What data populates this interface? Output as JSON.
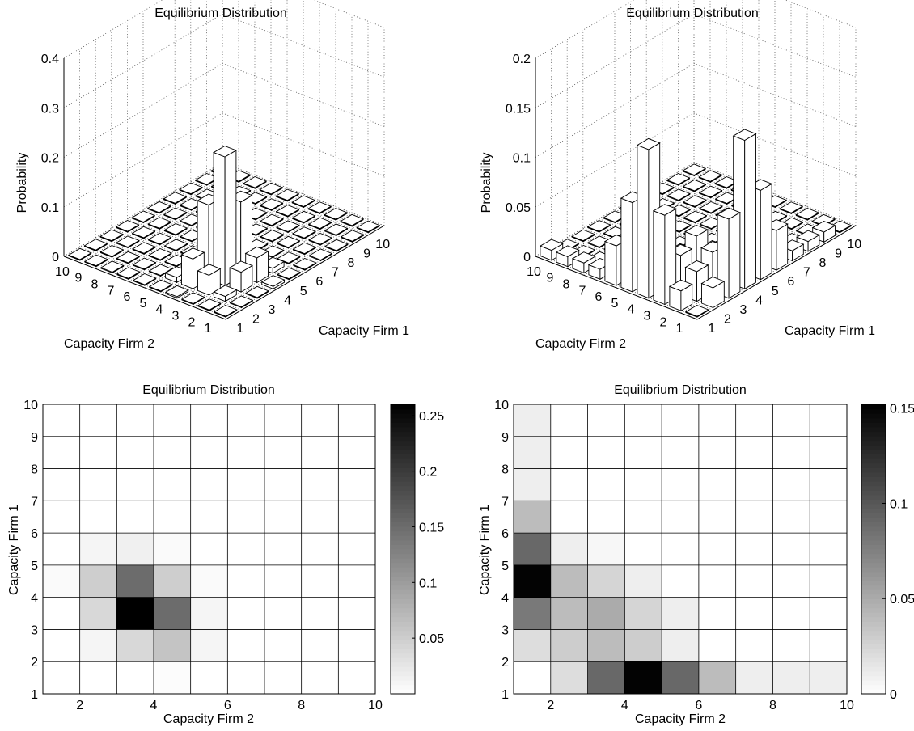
{
  "chart_data": [
    {
      "type": "bar3d",
      "title": "Equilibrium Distribution",
      "xlabel": "Capacity Firm 1",
      "ylabel": "Capacity Firm 2",
      "zlabel": "Probability",
      "x_ticks": [
        "1",
        "2",
        "3",
        "4",
        "5",
        "6",
        "7",
        "8",
        "9",
        "10"
      ],
      "y_ticks": [
        "1",
        "2",
        "3",
        "4",
        "5",
        "6",
        "7",
        "8",
        "9",
        "10"
      ],
      "z_ticks": [
        "0",
        "0.1",
        "0.2",
        "0.3",
        "0.4"
      ],
      "zlim": [
        0,
        0.4
      ],
      "grid": true,
      "matrix_note": "rows = Capacity Firm 1 (1..10), cols = Capacity Firm 2 (1..10)",
      "matrix": [
        [
          0,
          0,
          0,
          0.003,
          0,
          0,
          0,
          0,
          0,
          0
        ],
        [
          0,
          0.01,
          0.04,
          0.06,
          0.01,
          0,
          0,
          0,
          0,
          0
        ],
        [
          0,
          0.04,
          0.26,
          0.15,
          0.01,
          0,
          0,
          0,
          0,
          0
        ],
        [
          0.005,
          0.05,
          0.15,
          0.05,
          0.005,
          0,
          0,
          0,
          0,
          0
        ],
        [
          0,
          0.01,
          0.015,
          0.005,
          0,
          0,
          0,
          0,
          0,
          0
        ],
        [
          0,
          0,
          0,
          0,
          0,
          0,
          0,
          0,
          0,
          0
        ],
        [
          0,
          0,
          0,
          0,
          0,
          0,
          0,
          0,
          0,
          0
        ],
        [
          0,
          0,
          0,
          0,
          0,
          0,
          0,
          0,
          0,
          0
        ],
        [
          0,
          0,
          0,
          0,
          0,
          0,
          0,
          0,
          0,
          0
        ],
        [
          0,
          0,
          0,
          0,
          0,
          0,
          0,
          0,
          0,
          0
        ]
      ]
    },
    {
      "type": "bar3d",
      "title": "Equilibrium Distribution",
      "xlabel": "Capacity Firm 1",
      "ylabel": "Capacity Firm 2",
      "zlabel": "Probability",
      "x_ticks": [
        "1",
        "2",
        "3",
        "4",
        "5",
        "6",
        "7",
        "8",
        "9",
        "10"
      ],
      "y_ticks": [
        "1",
        "2",
        "3",
        "4",
        "5",
        "6",
        "7",
        "8",
        "9",
        "10"
      ],
      "z_ticks": [
        "0",
        "0.05",
        "0.1",
        "0.15",
        "0.2"
      ],
      "zlim": [
        0,
        0.2
      ],
      "grid": true,
      "matrix_note": "rows = Capacity Firm 1 (1..10), cols = Capacity Firm 2 (1..10)",
      "matrix": [
        [
          0,
          0.02,
          0.09,
          0.15,
          0.09,
          0.04,
          0.01,
          0.01,
          0.01,
          0.01
        ],
        [
          0.02,
          0.03,
          0.04,
          0.03,
          0.01,
          0,
          0,
          0,
          0,
          0
        ],
        [
          0.08,
          0.04,
          0.05,
          0.025,
          0.01,
          0,
          0,
          0,
          0,
          0
        ],
        [
          0.15,
          0.04,
          0.025,
          0.01,
          0,
          0,
          0,
          0,
          0,
          0
        ],
        [
          0.09,
          0.01,
          0.005,
          0,
          0,
          0,
          0,
          0,
          0,
          0
        ],
        [
          0.04,
          0,
          0,
          0,
          0,
          0,
          0,
          0,
          0,
          0
        ],
        [
          0.01,
          0,
          0,
          0,
          0,
          0,
          0,
          0,
          0,
          0
        ],
        [
          0.01,
          0,
          0,
          0,
          0,
          0,
          0,
          0,
          0,
          0
        ],
        [
          0.01,
          0,
          0,
          0,
          0,
          0,
          0,
          0,
          0,
          0
        ],
        [
          0,
          0,
          0,
          0,
          0,
          0,
          0,
          0,
          0,
          0
        ]
      ]
    },
    {
      "type": "heatmap",
      "title": "Equilibrium Distribution",
      "xlabel": "Capacity Firm 2",
      "ylabel": "Capacity Firm 1",
      "xlim": [
        1,
        10
      ],
      "ylim": [
        1,
        10
      ],
      "x_ticks": [
        "2",
        "4",
        "6",
        "8",
        "10"
      ],
      "y_ticks": [
        "1",
        "2",
        "3",
        "4",
        "5",
        "6",
        "7",
        "8",
        "9",
        "10"
      ],
      "colorbar_ticks": [
        "0.05",
        "0.1",
        "0.15",
        "0.2",
        "0.25"
      ],
      "color_range": [
        0,
        0.26
      ],
      "colormap": "gray-reversed",
      "grid": true,
      "matrix_note": "rows = Capacity Firm 1 (1..10), cols = Capacity Firm 2 (1..10)",
      "matrix": [
        [
          0,
          0,
          0,
          0.003,
          0,
          0,
          0,
          0,
          0,
          0
        ],
        [
          0,
          0.01,
          0.04,
          0.06,
          0.01,
          0,
          0,
          0,
          0,
          0
        ],
        [
          0,
          0.04,
          0.26,
          0.15,
          0.01,
          0,
          0,
          0,
          0,
          0
        ],
        [
          0.005,
          0.05,
          0.15,
          0.05,
          0.005,
          0,
          0,
          0,
          0,
          0
        ],
        [
          0,
          0.01,
          0.015,
          0.005,
          0,
          0,
          0,
          0,
          0,
          0
        ],
        [
          0,
          0,
          0,
          0,
          0,
          0,
          0,
          0,
          0,
          0
        ],
        [
          0,
          0,
          0,
          0,
          0,
          0,
          0,
          0,
          0,
          0
        ],
        [
          0,
          0,
          0,
          0,
          0,
          0,
          0,
          0,
          0,
          0
        ],
        [
          0,
          0,
          0,
          0,
          0,
          0,
          0,
          0,
          0,
          0
        ],
        [
          0,
          0,
          0,
          0,
          0,
          0,
          0,
          0,
          0,
          0
        ]
      ]
    },
    {
      "type": "heatmap",
      "title": "Equilibrium Distribution",
      "xlabel": "Capacity Firm 2",
      "ylabel": "Capacity Firm 1",
      "xlim": [
        1,
        10
      ],
      "ylim": [
        1,
        10
      ],
      "x_ticks": [
        "2",
        "4",
        "6",
        "8",
        "10"
      ],
      "y_ticks": [
        "1",
        "2",
        "3",
        "4",
        "5",
        "6",
        "7",
        "8",
        "9",
        "10"
      ],
      "colorbar_ticks": [
        "0",
        "0.05",
        "0.1",
        "0.15"
      ],
      "color_range": [
        0,
        0.152
      ],
      "colormap": "gray-reversed",
      "grid": true,
      "matrix_note": "rows = Capacity Firm 1 (1..10), cols = Capacity Firm 2 (1..10)",
      "matrix": [
        [
          0,
          0.02,
          0.09,
          0.15,
          0.09,
          0.04,
          0.01,
          0.01,
          0.01,
          0.01
        ],
        [
          0.02,
          0.03,
          0.04,
          0.03,
          0.01,
          0,
          0,
          0,
          0,
          0
        ],
        [
          0.08,
          0.04,
          0.05,
          0.025,
          0.01,
          0,
          0,
          0,
          0,
          0
        ],
        [
          0.15,
          0.04,
          0.025,
          0.01,
          0,
          0,
          0,
          0,
          0,
          0
        ],
        [
          0.09,
          0.01,
          0.005,
          0,
          0,
          0,
          0,
          0,
          0,
          0
        ],
        [
          0.04,
          0,
          0,
          0,
          0,
          0,
          0,
          0,
          0,
          0
        ],
        [
          0.01,
          0,
          0,
          0,
          0,
          0,
          0,
          0,
          0,
          0
        ],
        [
          0.01,
          0,
          0,
          0,
          0,
          0,
          0,
          0,
          0,
          0
        ],
        [
          0.01,
          0,
          0,
          0,
          0,
          0,
          0,
          0,
          0,
          0
        ],
        [
          0,
          0,
          0,
          0,
          0,
          0,
          0,
          0,
          0,
          0
        ]
      ]
    }
  ]
}
